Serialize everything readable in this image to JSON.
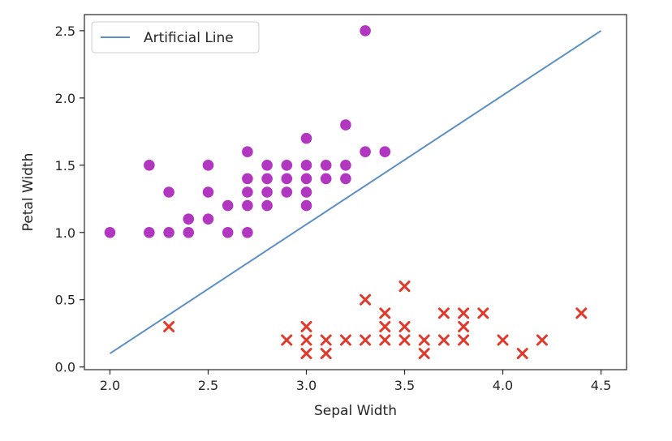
{
  "chart_data": {
    "type": "scatter",
    "title": "",
    "xlabel": "Sepal Width",
    "ylabel": "Petal Width",
    "xlim": [
      1.87,
      4.63
    ],
    "ylim": [
      -0.02,
      2.62
    ],
    "xticks": [
      2.0,
      2.5,
      3.0,
      3.5,
      4.0,
      4.5
    ],
    "xtick_labels": [
      "2.0",
      "2.5",
      "3.0",
      "3.5",
      "4.0",
      "4.5"
    ],
    "yticks": [
      0.0,
      0.5,
      1.0,
      1.5,
      2.0,
      2.5
    ],
    "ytick_labels": [
      "0.0",
      "0.5",
      "1.0",
      "1.5",
      "2.0",
      "2.5"
    ],
    "grid": false,
    "legend": {
      "placement": "top-left",
      "entries": [
        "Artificial Line"
      ]
    },
    "line": {
      "name": "Artificial Line",
      "color": "#5b8fc4",
      "x": [
        2.0,
        4.5
      ],
      "y": [
        0.1,
        2.5
      ]
    },
    "series": [
      {
        "marker": "circle",
        "color": "#b137c1",
        "points": [
          [
            2.0,
            1.0
          ],
          [
            2.2,
            1.5
          ],
          [
            2.2,
            1.0
          ],
          [
            2.3,
            1.3
          ],
          [
            2.3,
            1.0
          ],
          [
            2.4,
            1.1
          ],
          [
            2.4,
            1.0
          ],
          [
            2.5,
            1.5
          ],
          [
            2.5,
            1.3
          ],
          [
            2.5,
            1.1
          ],
          [
            2.6,
            1.2
          ],
          [
            2.6,
            1.0
          ],
          [
            2.7,
            1.6
          ],
          [
            2.7,
            1.4
          ],
          [
            2.7,
            1.3
          ],
          [
            2.7,
            1.2
          ],
          [
            2.7,
            1.0
          ],
          [
            2.8,
            1.5
          ],
          [
            2.8,
            1.4
          ],
          [
            2.8,
            1.3
          ],
          [
            2.8,
            1.2
          ],
          [
            2.9,
            1.5
          ],
          [
            2.9,
            1.4
          ],
          [
            2.9,
            1.3
          ],
          [
            3.0,
            1.7
          ],
          [
            3.0,
            1.5
          ],
          [
            3.0,
            1.4
          ],
          [
            3.0,
            1.3
          ],
          [
            3.0,
            1.2
          ],
          [
            3.1,
            1.5
          ],
          [
            3.1,
            1.4
          ],
          [
            3.2,
            1.8
          ],
          [
            3.2,
            1.5
          ],
          [
            3.2,
            1.4
          ],
          [
            3.3,
            2.5
          ],
          [
            3.3,
            1.6
          ],
          [
            3.4,
            1.6
          ]
        ]
      },
      {
        "marker": "x",
        "color": "#e03a2c",
        "points": [
          [
            2.3,
            0.3
          ],
          [
            2.9,
            0.2
          ],
          [
            3.0,
            0.3
          ],
          [
            3.0,
            0.2
          ],
          [
            3.0,
            0.1
          ],
          [
            3.1,
            0.2
          ],
          [
            3.1,
            0.1
          ],
          [
            3.2,
            0.2
          ],
          [
            3.3,
            0.5
          ],
          [
            3.3,
            0.2
          ],
          [
            3.4,
            0.4
          ],
          [
            3.4,
            0.3
          ],
          [
            3.4,
            0.2
          ],
          [
            3.5,
            0.6
          ],
          [
            3.5,
            0.3
          ],
          [
            3.5,
            0.2
          ],
          [
            3.6,
            0.2
          ],
          [
            3.6,
            0.1
          ],
          [
            3.7,
            0.4
          ],
          [
            3.7,
            0.2
          ],
          [
            3.8,
            0.4
          ],
          [
            3.8,
            0.3
          ],
          [
            3.8,
            0.2
          ],
          [
            3.9,
            0.4
          ],
          [
            4.0,
            0.2
          ],
          [
            4.1,
            0.1
          ],
          [
            4.2,
            0.2
          ],
          [
            4.4,
            0.4
          ]
        ]
      }
    ]
  }
}
